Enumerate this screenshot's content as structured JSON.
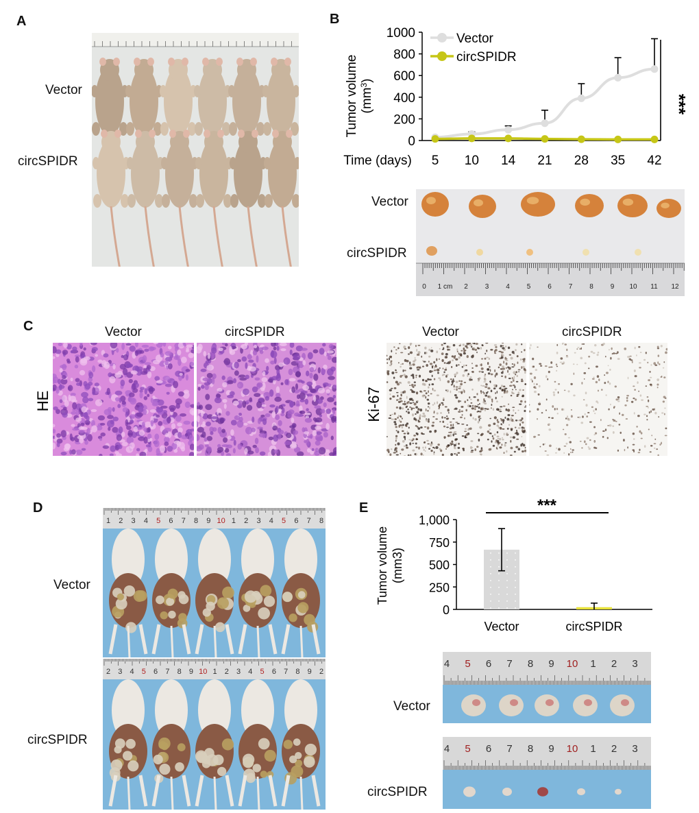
{
  "panels": {
    "A": {
      "letter": "A",
      "row_labels": [
        "Vector",
        "circSPIDR"
      ]
    },
    "B": {
      "letter": "B",
      "photo_row_labels": [
        "Vector",
        "circSPIDR"
      ],
      "ruler_ticks": [
        "0",
        "1 cm",
        "2",
        "3",
        "4",
        "5",
        "6",
        "7",
        "8",
        "9",
        "10",
        "11",
        "12"
      ]
    },
    "C": {
      "letter": "C",
      "he_label": "HE",
      "ki67_label": "Ki-67",
      "he_columns": [
        "Vector",
        "circSPIDR"
      ],
      "ki67_columns": [
        "Vector",
        "circSPIDR"
      ]
    },
    "D": {
      "letter": "D",
      "row_labels": [
        "Vector",
        "circSPIDR"
      ],
      "ruler_top": [
        "1",
        "2",
        "3",
        "4",
        "5",
        "6",
        "7",
        "8",
        "9",
        "10",
        "1",
        "2",
        "3",
        "4",
        "5",
        "6",
        "7",
        "8"
      ],
      "ruler_bottom": [
        "2",
        "3",
        "4",
        "5",
        "6",
        "7",
        "8",
        "9",
        "10",
        "1",
        "2",
        "3",
        "4",
        "5",
        "6",
        "7",
        "8",
        "9",
        "2"
      ]
    },
    "E": {
      "letter": "E",
      "photo_row_labels": [
        "Vector",
        "circSPIDR"
      ],
      "ruler_ticks": [
        "4",
        "5",
        "6",
        "7",
        "8",
        "9",
        "10",
        "1",
        "2",
        "3"
      ]
    }
  },
  "colors": {
    "vector_line": "#dedede",
    "circ_line": "#c6c617",
    "bar_vector": "#d9d9d9",
    "bar_circ": "#e8e23a",
    "mouse_skin": "#b9a48e",
    "he_pink": "#d486d8",
    "he_purple": "#8a4cb8",
    "ki_brown": "#3c2a22",
    "tumor_orange": "#d5823b",
    "blue_bg": "#7fb7dc"
  },
  "chart_data": [
    {
      "type": "line",
      "ylabel_main": "Tumor volume",
      "ylabel_unit": "(mm",
      "ylabel_sup": "3",
      "ylabel_close": ")",
      "xlabel": "Time (days)",
      "x": [
        5,
        10,
        14,
        21,
        28,
        35,
        42
      ],
      "ylim": [
        0,
        1000
      ],
      "yticks": [
        0,
        200,
        400,
        600,
        800,
        1000
      ],
      "series": [
        {
          "name": "Vector",
          "values": [
            30,
            60,
            100,
            160,
            390,
            580,
            660
          ],
          "err": [
            10,
            20,
            35,
            120,
            135,
            185,
            280
          ]
        },
        {
          "name": "circSPIDR",
          "values": [
            15,
            20,
            20,
            15,
            12,
            10,
            10
          ],
          "err": [
            3,
            4,
            4,
            3,
            3,
            2,
            2
          ]
        }
      ],
      "significance": "***",
      "legend": "top-left"
    },
    {
      "type": "bar",
      "ylabel": "Tumor volume",
      "ylabel2": "(mm3)",
      "categories": [
        "Vector",
        "circSPIDR"
      ],
      "values": [
        665,
        25
      ],
      "err": [
        235,
        45
      ],
      "ylim": [
        0,
        1000
      ],
      "yticks": [
        "0",
        "250",
        "500",
        "750",
        "1,000"
      ],
      "ytick_values": [
        0,
        250,
        500,
        750,
        1000
      ],
      "significance": "***"
    }
  ]
}
